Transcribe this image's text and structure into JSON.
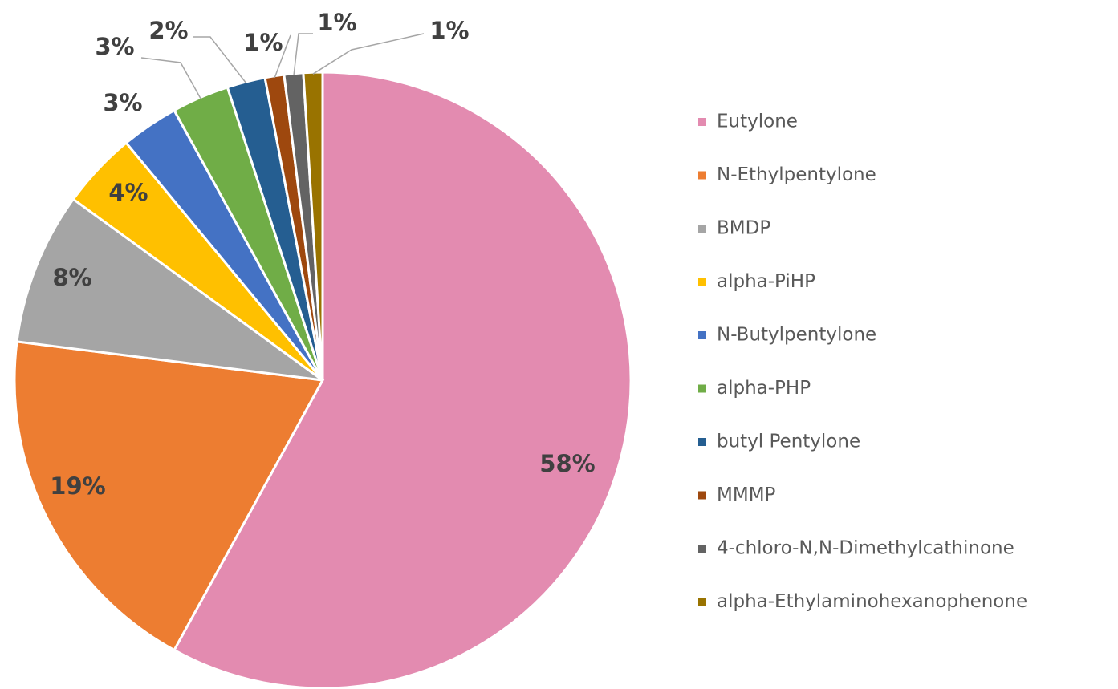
{
  "chart_data": {
    "type": "pie",
    "categories": [
      "Eutylone",
      "N-Ethylpentylone",
      "BMDP",
      "alpha-PiHP",
      "N-Butylpentylone",
      "alpha-PHP",
      "butyl Pentylone",
      "MMMP",
      "4-chloro-N,N-Dimethylcathinone",
      "alpha-Ethylaminohexanophenone"
    ],
    "values": [
      58,
      19,
      8,
      4,
      3,
      3,
      2,
      1,
      1,
      1
    ],
    "value_labels": [
      "58%",
      "19%",
      "8%",
      "4%",
      "3%",
      "3%",
      "2%",
      "1%",
      "1%",
      "1%"
    ],
    "colors": [
      "#e38bb0",
      "#ed7d31",
      "#a5a5a5",
      "#ffc000",
      "#4472c4",
      "#70ad47",
      "#255e91",
      "#9e480e",
      "#636363",
      "#997300"
    ],
    "legend": "right"
  }
}
